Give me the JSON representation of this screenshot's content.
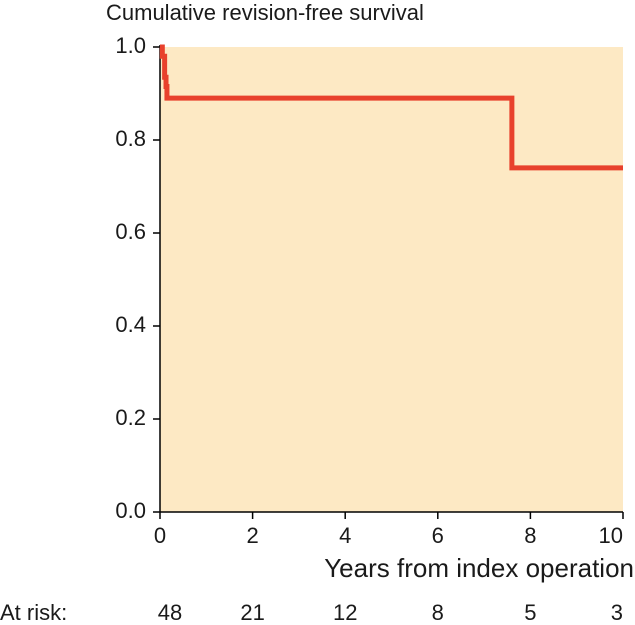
{
  "chart_data": {
    "type": "line",
    "title": "Cumulative revision-free survival",
    "x_label": "Years from index operation",
    "x": [
      0,
      0.05,
      0.05,
      0.1,
      0.1,
      0.13,
      0.13,
      0.15,
      0.15,
      7.6,
      7.6,
      10
    ],
    "series": [
      {
        "color": "#e8412c",
        "values": [
          1.0,
          1.0,
          0.98,
          0.98,
          0.935,
          0.935,
          0.915,
          0.915,
          0.89,
          0.89,
          0.74,
          0.74
        ]
      }
    ],
    "xlim": [
      0,
      10
    ],
    "xticks": [
      0,
      2,
      4,
      6,
      8,
      10
    ],
    "ylim": [
      0,
      1
    ],
    "yticks": [
      {
        "value": 0,
        "label": "0.0"
      },
      {
        "value": 0.2,
        "label": "0.2"
      },
      {
        "value": 0.4,
        "label": "0.4"
      },
      {
        "value": 0.6,
        "label": "0.6"
      },
      {
        "value": 0.8,
        "label": "0.8"
      },
      {
        "value": 1,
        "label": "1.0"
      }
    ],
    "background": "#fde9c4",
    "at_risk": {
      "label": "At risk:",
      "values": [
        48,
        21,
        12,
        8,
        5,
        3
      ]
    }
  }
}
